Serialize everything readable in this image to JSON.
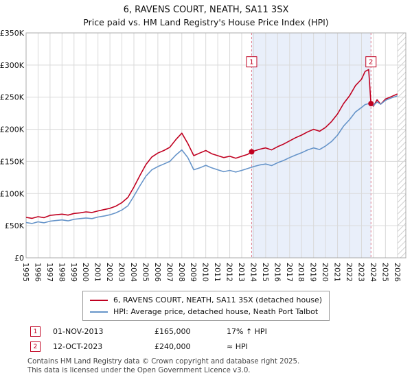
{
  "title": "6, RAVENS COURT, NEATH, SA11 3SX",
  "subtitle": "Price paid vs. HM Land Registry's House Price Index (HPI)",
  "chart_data": {
    "type": "line",
    "xlim": [
      1995,
      2026.7
    ],
    "ylim": [
      0,
      350000
    ],
    "xticks": [
      1995,
      1996,
      1997,
      1998,
      1999,
      2000,
      2001,
      2002,
      2003,
      2004,
      2005,
      2006,
      2007,
      2008,
      2009,
      2010,
      2011,
      2012,
      2013,
      2014,
      2015,
      2016,
      2017,
      2018,
      2019,
      2020,
      2021,
      2022,
      2023,
      2024,
      2025,
      2026
    ],
    "yticks": [
      0,
      50000,
      100000,
      150000,
      200000,
      250000,
      300000,
      350000
    ],
    "ytick_labels": [
      "£0",
      "£50K",
      "£100K",
      "£150K",
      "£200K",
      "£250K",
      "£300K",
      "£350K"
    ],
    "grid": true,
    "grid_color": "#d9d9d9",
    "border_color": "#ababab",
    "shade_color": "#e9effa",
    "dashed_line_color": "#e08090",
    "marker_color": "#c00020",
    "hatch_color": "#bfbfbf",
    "shaded_region": [
      2013.83,
      2023.79
    ],
    "hatched_region": [
      2026.0,
      2026.7
    ],
    "marker_label_y": 305000,
    "x": [
      1995,
      1995.5,
      1996,
      1996.5,
      1997,
      1997.5,
      1998,
      1998.5,
      1999,
      1999.5,
      2000,
      2000.5,
      2001,
      2001.5,
      2002,
      2002.5,
      2003,
      2003.5,
      2004,
      2004.5,
      2005,
      2005.5,
      2006,
      2006.5,
      2007,
      2007.5,
      2008,
      2008.5,
      2009,
      2009.5,
      2010,
      2010.5,
      2011,
      2011.5,
      2012,
      2012.5,
      2013,
      2013.5,
      2013.83,
      2014,
      2014.5,
      2015,
      2015.5,
      2016,
      2016.5,
      2017,
      2017.5,
      2018,
      2018.5,
      2019,
      2019.5,
      2020,
      2020.5,
      2021,
      2021.5,
      2022,
      2022.5,
      2023,
      2023.3,
      2023.6,
      2023.79,
      2024,
      2024.3,
      2024.6,
      2025,
      2025.5,
      2026
    ],
    "series": [
      {
        "name": "6, RAVENS COURT, NEATH, SA11 3SX (detached house)",
        "color": "#c00020",
        "values": [
          63000,
          61500,
          64000,
          62500,
          66000,
          67000,
          68000,
          66500,
          69000,
          70000,
          71500,
          70500,
          73000,
          75000,
          77000,
          80500,
          86000,
          94000,
          110000,
          128000,
          145000,
          157000,
          163000,
          167000,
          172000,
          184000,
          194000,
          178000,
          159000,
          163000,
          167000,
          162000,
          159000,
          156000,
          158000,
          155000,
          158000,
          161000,
          165000,
          166000,
          169000,
          171000,
          168000,
          173000,
          177000,
          182000,
          187000,
          191000,
          196000,
          200000,
          197000,
          203000,
          212000,
          224000,
          240000,
          252000,
          268000,
          278000,
          290000,
          293000,
          240000,
          236000,
          246000,
          239000,
          247000,
          251000,
          255000
        ]
      },
      {
        "name": "HPI: Average price, detached house, Neath Port Talbot",
        "color": "#6694c9",
        "values": [
          55000,
          53500,
          56000,
          54500,
          57000,
          58000,
          59000,
          57500,
          60000,
          61000,
          62000,
          61000,
          63500,
          65000,
          67000,
          70000,
          74500,
          81000,
          96000,
          112000,
          127000,
          137000,
          142000,
          146000,
          150000,
          160000,
          168000,
          156000,
          137000,
          140000,
          144000,
          140000,
          137000,
          134000,
          136000,
          133500,
          136000,
          139000,
          141000,
          142000,
          144500,
          146000,
          143500,
          148000,
          151500,
          156000,
          160000,
          163500,
          168000,
          171000,
          168500,
          174000,
          181000,
          191000,
          205000,
          215000,
          227000,
          234000,
          238500,
          240000,
          240000,
          237000,
          242500,
          239000,
          245000,
          249000,
          252000
        ]
      }
    ],
    "markers": [
      {
        "n": "1",
        "x": 2013.83,
        "y": 165000
      },
      {
        "n": "2",
        "x": 2023.79,
        "y": 240000
      }
    ]
  },
  "legend": [
    "6, RAVENS COURT, NEATH, SA11 3SX (detached house)",
    "HPI: Average price, detached house, Neath Port Talbot"
  ],
  "annotations": [
    {
      "n": "1",
      "date": "01-NOV-2013",
      "price": "£165,000",
      "hpi": "17% ↑ HPI"
    },
    {
      "n": "2",
      "date": "12-OCT-2023",
      "price": "£240,000",
      "hpi": "≈ HPI"
    }
  ],
  "footer": {
    "line1": "Contains HM Land Registry data © Crown copyright and database right 2025.",
    "line2": "This data is licensed under the Open Government Licence v3.0."
  }
}
